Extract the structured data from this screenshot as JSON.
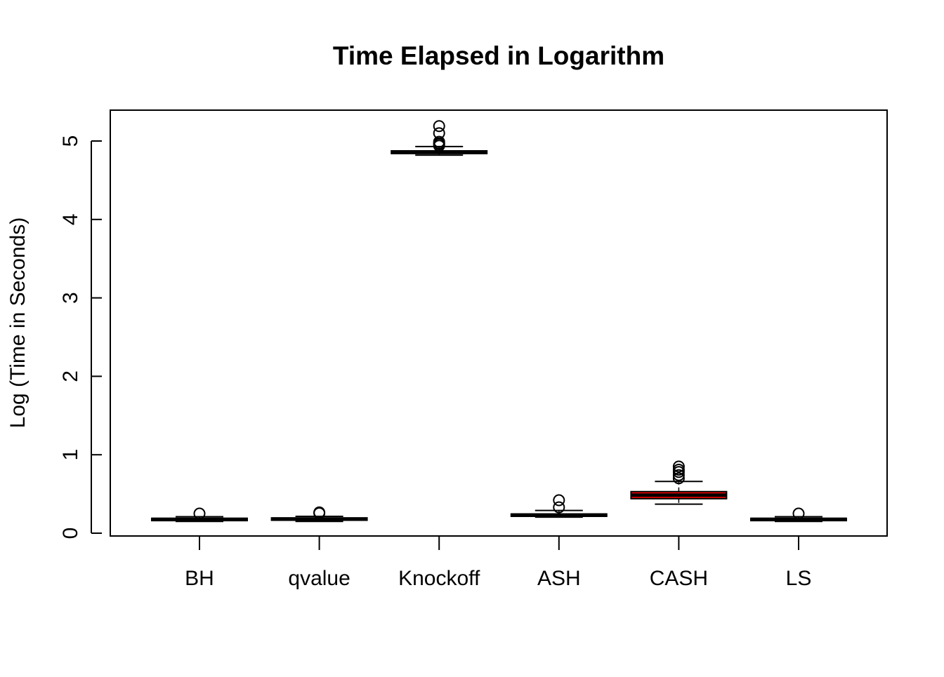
{
  "chart_data": {
    "type": "boxplot",
    "title": "Time Elapsed in Logarithm",
    "xlabel": "",
    "ylabel": "Log (Time in Seconds)",
    "ylim": [
      -0.1,
      5.4
    ],
    "yticks": [
      "0",
      "1",
      "2",
      "3",
      "4",
      "5"
    ],
    "grid": false,
    "categories": [
      "BH",
      "qvalue",
      "Knockoff",
      "ASH",
      "CASH",
      "LS"
    ],
    "boxes": [
      {
        "min": 0.15,
        "q1": 0.16,
        "median": 0.175,
        "q3": 0.19,
        "max": 0.21,
        "outliers": [
          0.25
        ],
        "fill": "#ffffff"
      },
      {
        "min": 0.15,
        "q1": 0.165,
        "median": 0.18,
        "q3": 0.195,
        "max": 0.215,
        "outliers": [
          0.255,
          0.265
        ],
        "fill": "#ffffff"
      },
      {
        "min": 4.82,
        "q1": 4.84,
        "median": 4.86,
        "q3": 4.875,
        "max": 4.93,
        "outliers": [
          4.94,
          4.96,
          4.97,
          4.99,
          5.1,
          5.19
        ],
        "fill": "#ffffff"
      },
      {
        "min": 0.205,
        "q1": 0.215,
        "median": 0.23,
        "q3": 0.245,
        "max": 0.29,
        "outliers": [
          0.33,
          0.42
        ],
        "fill": "#ffffff"
      },
      {
        "min": 0.37,
        "q1": 0.44,
        "median": 0.485,
        "q3": 0.53,
        "max": 0.66,
        "outliers": [
          0.7,
          0.74,
          0.78,
          0.81,
          0.85
        ],
        "fill": "#ff0000"
      },
      {
        "min": 0.15,
        "q1": 0.16,
        "median": 0.175,
        "q3": 0.19,
        "max": 0.21,
        "outliers": [
          0.25
        ],
        "fill": "#ffffff"
      }
    ]
  }
}
